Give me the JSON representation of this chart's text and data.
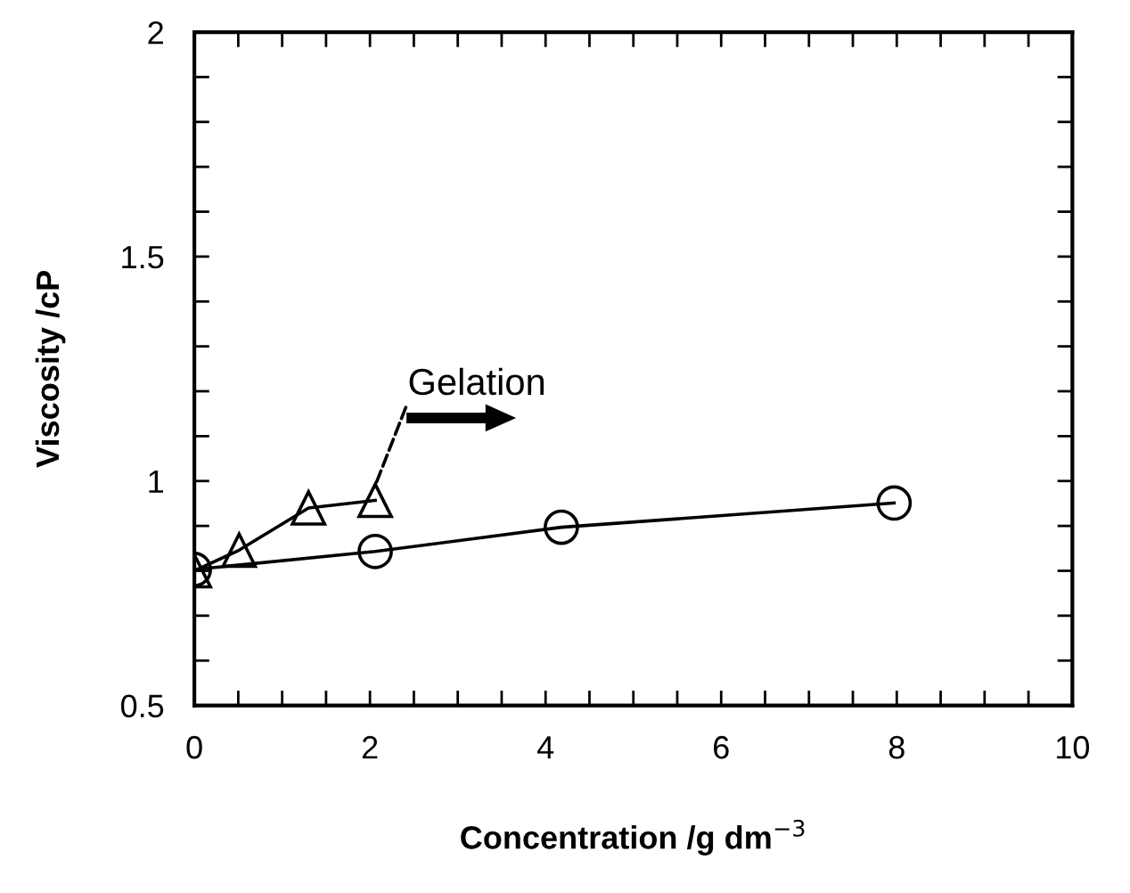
{
  "chart_data": {
    "type": "line",
    "xlabel": "Concentration /g dm$^{−3}$",
    "ylabel": "Viscosity /cP",
    "annotations": [
      {
        "text": "Gelation",
        "x": 2.06,
        "y": 0.99
      }
    ],
    "series": [
      {
        "color": "#000000",
        "marker": "circle",
        "line_style": "solid",
        "x": [
          0,
          2.06,
          4.18,
          7.97
        ],
        "values": [
          0.803,
          0.843,
          0.897,
          0.951
        ]
      },
      {
        "color": "#000000",
        "marker": "triangle",
        "line_style": "solid",
        "x": [
          0,
          0.51,
          1.3,
          2.06
        ],
        "values": [
          0.8,
          0.846,
          0.94,
          0.957
        ]
      }
    ],
    "xlim": [
      0,
      10
    ],
    "ylim": [
      0.5,
      2
    ],
    "xticks": [
      0,
      {
        "value": 0.5,
        "label": null
      },
      {
        "value": 1,
        "label": null
      },
      {
        "value": 1.5,
        "label": null
      },
      2,
      {
        "value": 2.5,
        "label": null
      },
      {
        "value": 3,
        "label": null
      },
      {
        "value": 3.5,
        "label": null
      },
      4,
      {
        "value": 4.5,
        "label": null
      },
      {
        "value": 5,
        "label": null
      },
      {
        "value": 5.5,
        "label": null
      },
      6,
      {
        "value": 6.5,
        "label": null
      },
      {
        "value": 7,
        "label": null
      },
      {
        "value": 7.5,
        "label": null
      },
      8,
      {
        "value": 8.5,
        "label": null
      },
      {
        "value": 9,
        "label": null
      },
      {
        "value": 9.5,
        "label": null
      },
      10
    ],
    "yticks": [
      0.5,
      {
        "value": 0.6,
        "label": null
      },
      {
        "value": 0.7,
        "label": null
      },
      {
        "value": 0.8,
        "label": null
      },
      {
        "value": 0.9,
        "label": null
      },
      1,
      {
        "value": 1.1,
        "label": null
      },
      {
        "value": 1.2,
        "label": null
      },
      {
        "value": 1.3,
        "label": null
      },
      {
        "value": 1.4,
        "label": null
      },
      1.5,
      {
        "value": 1.6,
        "label": null
      },
      {
        "value": 1.7,
        "label": null
      },
      {
        "value": 1.8,
        "label": null
      },
      {
        "value": 1.9,
        "label": null
      },
      2
    ],
    "grid": false
  }
}
